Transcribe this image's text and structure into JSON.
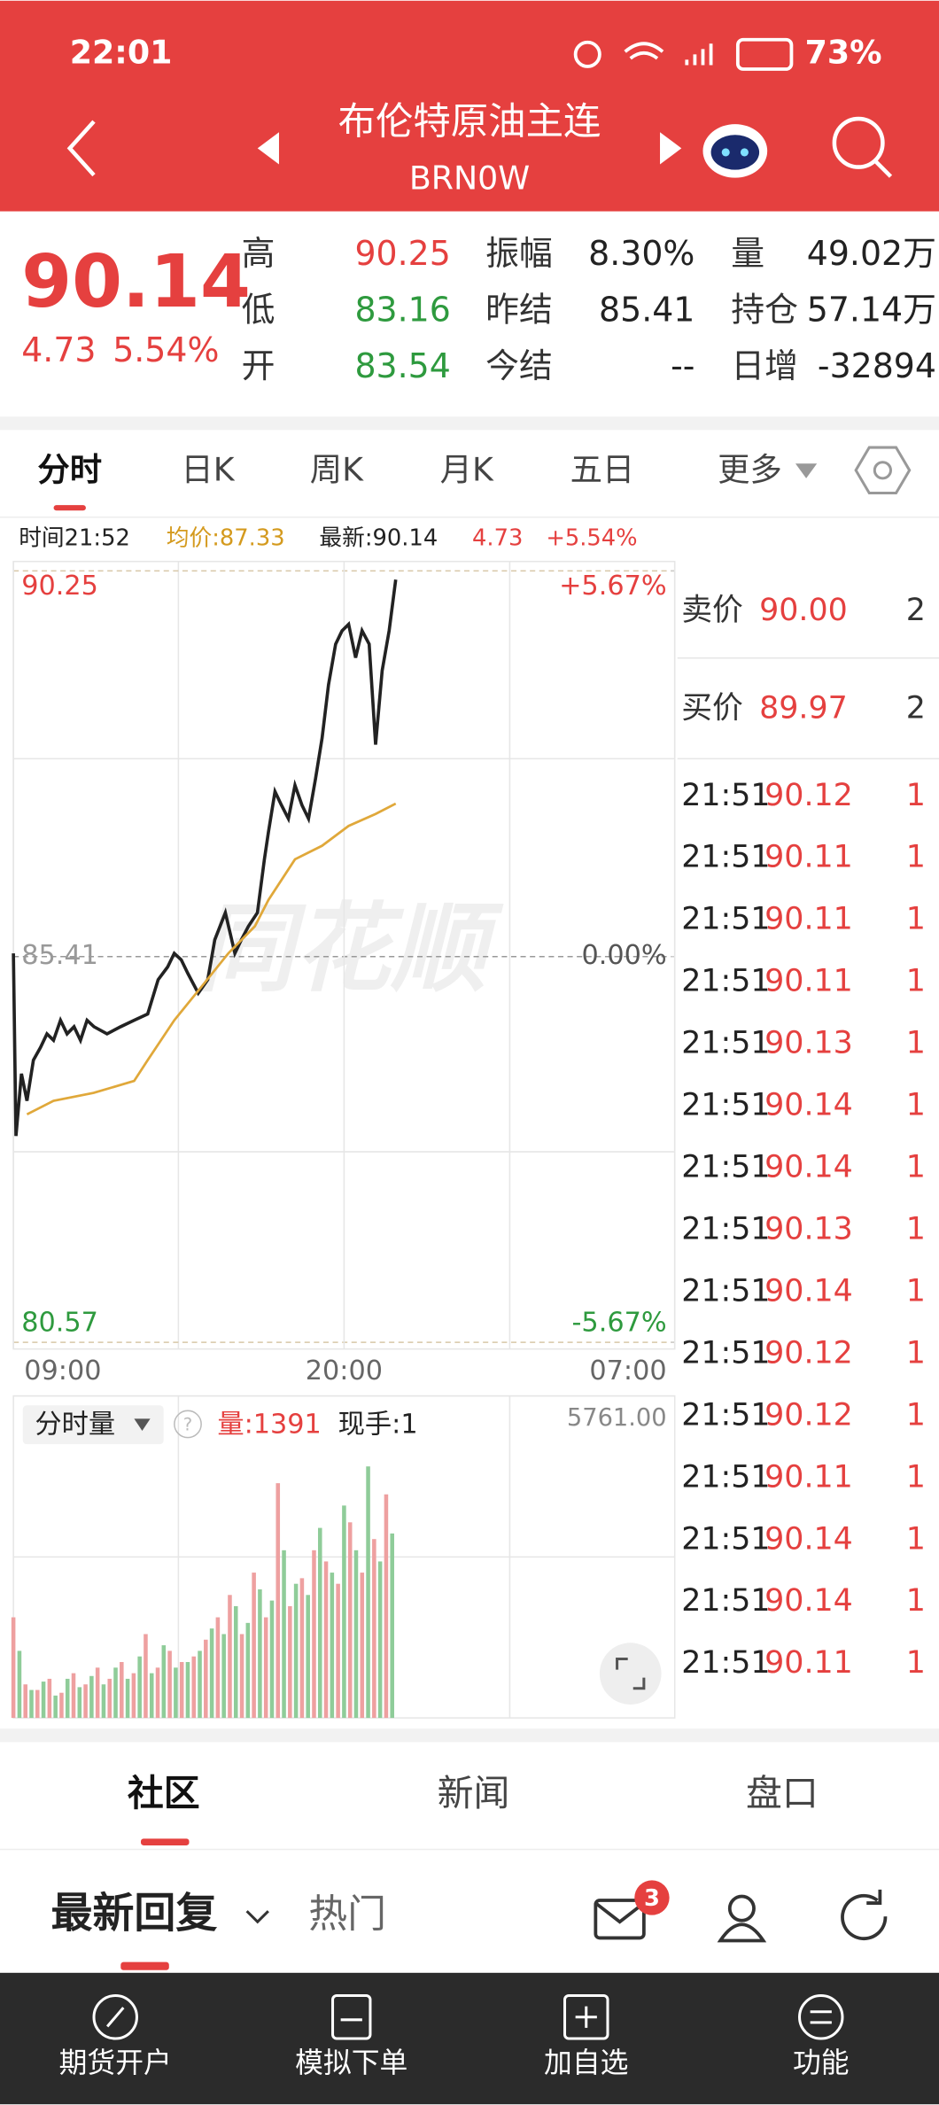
{
  "status": {
    "time": "22:01",
    "battery": "73%"
  },
  "header": {
    "title": "布伦特原油主连",
    "code": "BRN0W"
  },
  "quote": {
    "price": "90.14",
    "change": "4.73",
    "change_pct": "5.54%",
    "stats": [
      [
        "高",
        "90.25"
      ],
      [
        "低",
        "83.16"
      ],
      [
        "开",
        "83.54"
      ],
      [
        "振幅",
        "8.30%"
      ],
      [
        "昨结",
        "85.41"
      ],
      [
        "今结",
        "--"
      ],
      [
        "量",
        "49.02万"
      ],
      [
        "持仓",
        "57.14万"
      ],
      [
        "日增",
        "-32894"
      ]
    ]
  },
  "tabs": [
    "分时",
    "日K",
    "周K",
    "月K",
    "五日",
    "更多"
  ],
  "info": {
    "time": "时间21:52",
    "avg": "均价:87.33",
    "latest": "最新:90.14",
    "change": "4.73",
    "change_pct": "+5.54%"
  },
  "watermark": "同花顺",
  "chart_data": [
    {
      "type": "line",
      "xlim": [
        0,
        1320
      ],
      "xticks": [
        {
          "value": 0,
          "label": "09:00"
        },
        {
          "value": 660,
          "label": "20:00"
        },
        {
          "value": 1320,
          "label": "07:00"
        }
      ],
      "ylim": [
        80.57,
        90.25
      ],
      "yticks": [
        80.57,
        85.41,
        90.25
      ],
      "y2lim": [
        -5.67,
        5.67
      ],
      "y2ticks": [
        {
          "value": -5.67,
          "label": "-5.67%"
        },
        {
          "value": 0,
          "label": "0.00%"
        },
        {
          "value": 5.67,
          "label": "+5.67%"
        }
      ],
      "series": [
        {
          "color": "#222222",
          "x": [
            0,
            5,
            16,
            27,
            40,
            54,
            67,
            80,
            94,
            107,
            121,
            134,
            147,
            161,
            187,
            214,
            241,
            268,
            289,
            308,
            321,
            335,
            348,
            369,
            388,
            402,
            423,
            442,
            455,
            469,
            487,
            501,
            509,
            522,
            535,
            549,
            562,
            576,
            589,
            603,
            616,
            629,
            643,
            656,
            669,
            683,
            696,
            710,
            723,
            736,
            750,
            763
          ],
          "values": [
            85.45,
            83.16,
            83.94,
            83.6,
            84.11,
            84.27,
            84.44,
            84.36,
            84.61,
            84.44,
            84.53,
            84.36,
            84.61,
            84.53,
            84.44,
            84.53,
            84.61,
            84.69,
            85.12,
            85.28,
            85.45,
            85.37,
            85.2,
            84.95,
            85.12,
            85.62,
            85.96,
            85.45,
            85.62,
            85.79,
            85.96,
            86.63,
            86.97,
            87.48,
            87.31,
            87.14,
            87.56,
            87.31,
            87.14,
            87.64,
            88.15,
            88.82,
            89.33,
            89.5,
            89.58,
            89.16,
            89.5,
            89.33,
            88.07,
            89.0,
            89.5,
            90.14
          ]
        },
        {
          "color": "#e0a83a",
          "x": [
            27,
            80,
            160,
            241,
            268,
            321,
            375,
            429,
            482,
            509,
            562,
            616,
            669,
            723,
            763
          ],
          "values": [
            83.43,
            83.6,
            83.7,
            83.85,
            84.11,
            84.61,
            85.03,
            85.45,
            85.79,
            86.12,
            86.63,
            86.8,
            87.05,
            87.2,
            87.33
          ]
        }
      ]
    },
    {
      "type": "bar",
      "xlim": [
        0,
        1320
      ],
      "ylim": [
        0,
        5761
      ],
      "yticks": [
        {
          "value": 5761,
          "label": "5761.00"
        }
      ],
      "series": [
        {
          "color": "#eea0a0",
          "x": [
            0,
            24,
            48,
            72,
            96,
            120,
            144,
            168,
            192,
            216,
            240,
            264,
            288,
            312,
            336,
            360,
            384,
            408,
            432,
            456,
            480,
            504,
            528,
            552,
            576,
            600,
            624,
            648,
            672,
            696,
            720,
            744
          ],
          "values": [
            1800,
            600,
            500,
            700,
            450,
            800,
            600,
            900,
            700,
            1000,
            800,
            1500,
            900,
            1200,
            1000,
            1100,
            1400,
            1800,
            2200,
            1500,
            2600,
            1800,
            4200,
            2000,
            2500,
            3000,
            2800,
            2400,
            3500,
            2600,
            3200,
            4000
          ]
        },
        {
          "color": "#8fcc99",
          "x": [
            12,
            36,
            60,
            84,
            108,
            132,
            156,
            180,
            204,
            228,
            252,
            276,
            300,
            324,
            348,
            372,
            396,
            420,
            444,
            468,
            492,
            516,
            540,
            564,
            588,
            612,
            636,
            660,
            684,
            708,
            732,
            756
          ],
          "values": [
            1200,
            500,
            650,
            400,
            700,
            550,
            750,
            600,
            900,
            700,
            1100,
            800,
            1300,
            900,
            1000,
            1200,
            1600,
            1500,
            2000,
            1700,
            2300,
            2100,
            3000,
            2400,
            2200,
            3400,
            2600,
            3800,
            3000,
            4500,
            2800,
            3300
          ]
        }
      ]
    }
  ],
  "volume_header": {
    "title": "分时量",
    "volume": "量:1391",
    "hand": "现手:1"
  },
  "order_book": [
    {
      "label": "卖价",
      "price": "90.00",
      "qty": "2"
    },
    {
      "label": "买价",
      "price": "89.97",
      "qty": "2"
    }
  ],
  "trades": [
    [
      "21:51",
      "90.12",
      "1"
    ],
    [
      "21:51",
      "90.11",
      "1"
    ],
    [
      "21:51",
      "90.11",
      "1"
    ],
    [
      "21:51",
      "90.11",
      "1"
    ],
    [
      "21:51",
      "90.13",
      "1"
    ],
    [
      "21:51",
      "90.14",
      "1"
    ],
    [
      "21:51",
      "90.14",
      "1"
    ],
    [
      "21:51",
      "90.13",
      "1"
    ],
    [
      "21:51",
      "90.14",
      "1"
    ],
    [
      "21:51",
      "90.12",
      "1"
    ],
    [
      "21:51",
      "90.12",
      "1"
    ],
    [
      "21:51",
      "90.11",
      "1"
    ],
    [
      "21:51",
      "90.14",
      "1"
    ],
    [
      "21:51",
      "90.14",
      "1"
    ],
    [
      "21:51",
      "90.11",
      "1"
    ]
  ],
  "community_tabs": [
    "社区",
    "新闻",
    "盘口"
  ],
  "feed_tabs": [
    "最新回复",
    "热门"
  ],
  "badge": "3",
  "nav": [
    "期货开户",
    "模拟下单",
    "加自选",
    "功能"
  ]
}
